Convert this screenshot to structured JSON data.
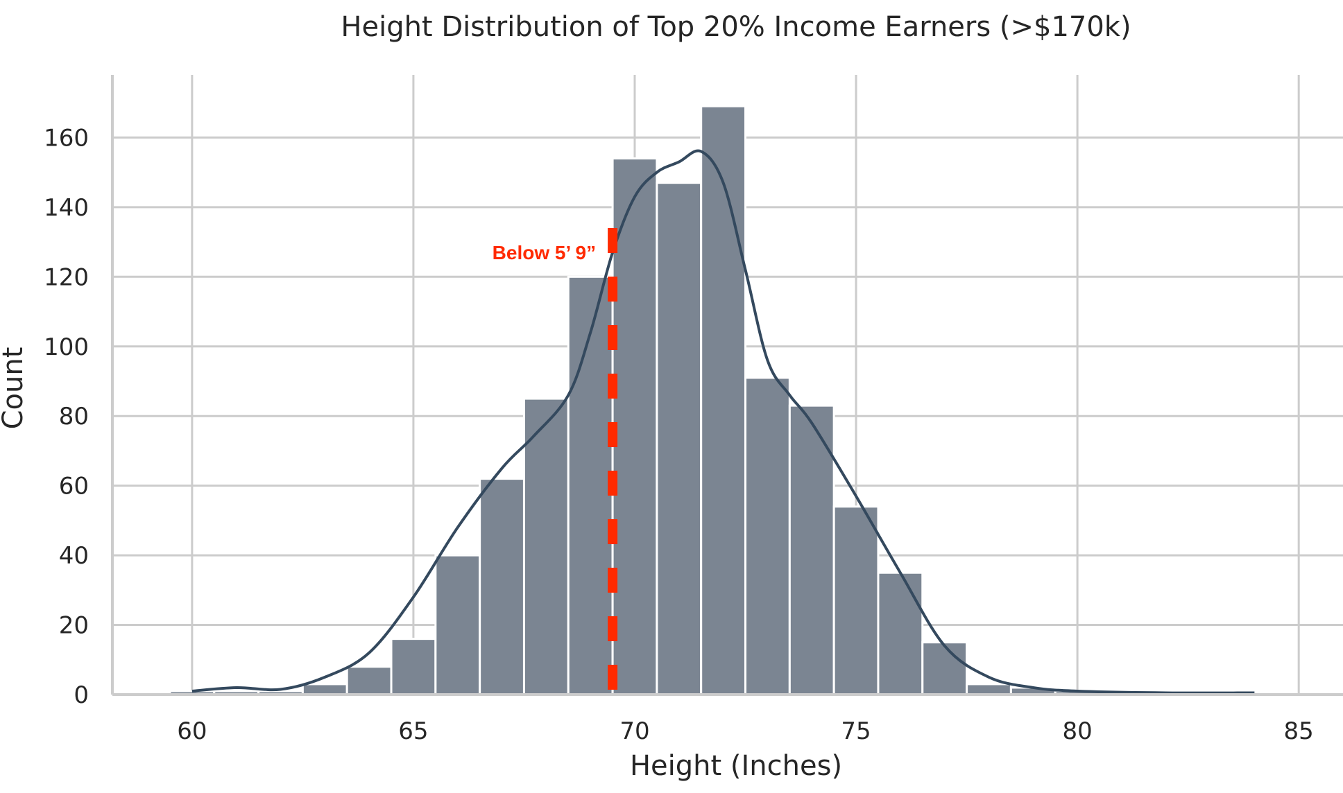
{
  "chart_data": {
    "type": "bar",
    "title": "Height Distribution of Top 20% Income Earners (>$170k)",
    "xlabel": "Height (Inches)",
    "ylabel": "Count",
    "xlim": [
      58.2,
      86
    ],
    "ylim": [
      0,
      178
    ],
    "xticks": [
      60,
      65,
      70,
      75,
      80,
      85
    ],
    "yticks": [
      0,
      20,
      40,
      60,
      80,
      100,
      120,
      140,
      160
    ],
    "grid": true,
    "bin_width": 1,
    "bins": [
      {
        "start": 59.5,
        "count": 1
      },
      {
        "start": 60.5,
        "count": 1
      },
      {
        "start": 61.5,
        "count": 1
      },
      {
        "start": 62.5,
        "count": 3
      },
      {
        "start": 63.5,
        "count": 8
      },
      {
        "start": 64.5,
        "count": 16
      },
      {
        "start": 65.5,
        "count": 40
      },
      {
        "start": 66.5,
        "count": 62
      },
      {
        "start": 67.5,
        "count": 85
      },
      {
        "start": 68.5,
        "count": 120
      },
      {
        "start": 69.5,
        "count": 154
      },
      {
        "start": 70.5,
        "count": 147
      },
      {
        "start": 71.5,
        "count": 169
      },
      {
        "start": 72.5,
        "count": 91
      },
      {
        "start": 73.5,
        "count": 83
      },
      {
        "start": 74.5,
        "count": 54
      },
      {
        "start": 75.5,
        "count": 35
      },
      {
        "start": 76.5,
        "count": 15
      },
      {
        "start": 77.5,
        "count": 3
      },
      {
        "start": 78.5,
        "count": 2
      },
      {
        "start": 79.5,
        "count": 1
      },
      {
        "start": 80.5,
        "count": 0.5
      },
      {
        "start": 81.5,
        "count": 0.5
      },
      {
        "start": 82.5,
        "count": 0.5
      },
      {
        "start": 83.5,
        "count": 0.5
      }
    ],
    "kde": {
      "x": [
        60,
        61,
        62,
        63,
        64,
        65,
        66,
        67,
        67.7,
        68.5,
        69,
        69.5,
        70,
        70.5,
        71,
        71.5,
        72,
        72.5,
        73,
        73.5,
        74,
        75,
        76,
        77,
        78,
        79,
        80,
        82,
        84
      ],
      "y": [
        1,
        2,
        1.5,
        5,
        12,
        28,
        48,
        65,
        74,
        86,
        104,
        127,
        143,
        150,
        153,
        156,
        147,
        122,
        96,
        86,
        78,
        57,
        35,
        14,
        5,
        2,
        1,
        0.5,
        0.5
      ]
    },
    "reference_line": {
      "x": 69.5,
      "label": "Below 5’ 9”",
      "label_y": 127
    },
    "colors": {
      "bar": "#7b8592",
      "kde": "#34495e",
      "reference": "#ff2a00",
      "grid": "#cccccc"
    }
  }
}
